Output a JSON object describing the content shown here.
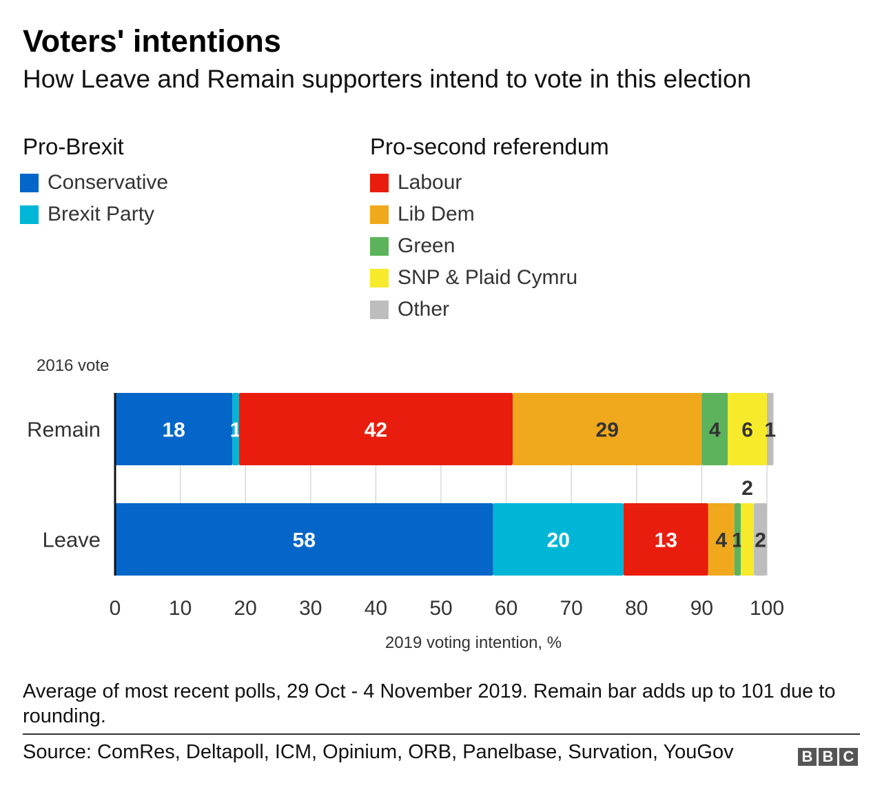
{
  "title": "Voters' intentions",
  "subtitle": "How Leave and Remain supporters intend to vote in this election",
  "legend": {
    "groups": [
      {
        "heading": "Pro-Brexit",
        "items": [
          {
            "label": "Conservative",
            "color": "#0466c8"
          },
          {
            "label": "Brexit Party",
            "color": "#00b6d6"
          }
        ]
      },
      {
        "heading": "Pro-second referendum",
        "items": [
          {
            "label": "Labour",
            "color": "#e91d0e"
          },
          {
            "label": "Lib Dem",
            "color": "#f0a91c"
          },
          {
            "label": "Green",
            "color": "#5cb35c"
          },
          {
            "label": "SNP & Plaid Cymru",
            "color": "#f7ea2a"
          },
          {
            "label": "Other",
            "color": "#bdbdbd"
          }
        ]
      }
    ]
  },
  "chart_data": {
    "type": "bar",
    "orientation": "horizontal",
    "stacked": true,
    "y_axis_title": "2016 vote",
    "xlabel": "2019 voting intention, %",
    "xlim": [
      0,
      100
    ],
    "xticks": [
      0,
      10,
      20,
      30,
      40,
      50,
      60,
      70,
      80,
      90,
      100
    ],
    "grid": true,
    "categories": [
      "Remain",
      "Leave"
    ],
    "series": [
      {
        "name": "Conservative",
        "color": "#0466c8",
        "values": [
          18,
          58
        ],
        "label_color": "#ffffff"
      },
      {
        "name": "Brexit Party",
        "color": "#00b6d6",
        "values": [
          1,
          20
        ],
        "label_color": "#ffffff"
      },
      {
        "name": "Labour",
        "color": "#e91d0e",
        "values": [
          42,
          13
        ],
        "label_color": "#ffffff"
      },
      {
        "name": "Lib Dem",
        "color": "#f0a91c",
        "values": [
          29,
          4
        ],
        "label_color": "#333333"
      },
      {
        "name": "Green",
        "color": "#5cb35c",
        "values": [
          4,
          1
        ],
        "label_color": "#333333"
      },
      {
        "name": "SNP & Plaid Cymru",
        "color": "#f7ea2a",
        "values": [
          6,
          2
        ],
        "label_color": "#333333"
      },
      {
        "name": "Other",
        "color": "#bdbdbd",
        "values": [
          1,
          2
        ],
        "label_color": "#333333"
      }
    ]
  },
  "footnote": "Average of most recent polls, 29 Oct - 4 November 2019. Remain bar adds up to 101 due to rounding.",
  "source": "Source: ComRes, Deltapoll, ICM, Opinium, ORB, Panelbase, Survation, YouGov",
  "logo": "BBC"
}
